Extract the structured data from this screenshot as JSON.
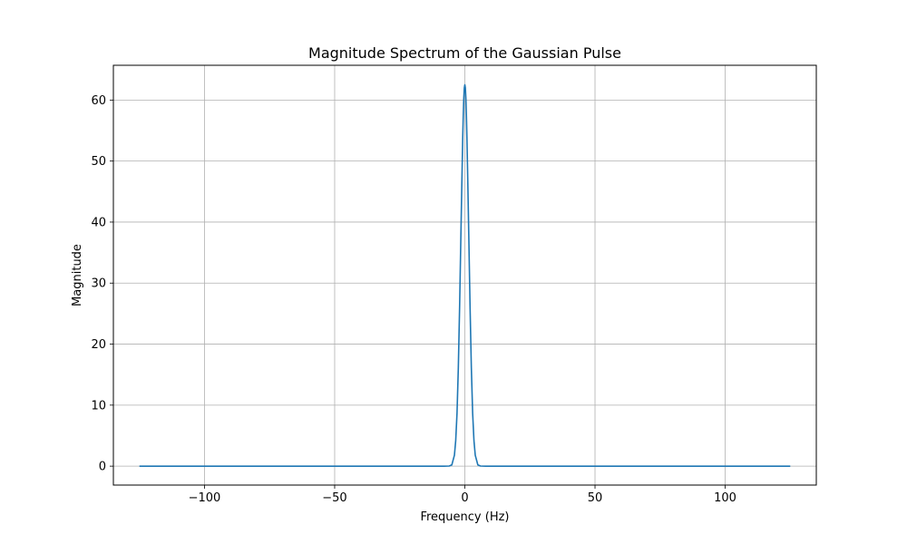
{
  "chart_data": {
    "type": "line",
    "title": "Magnitude Spectrum of the Gaussian Pulse",
    "xlabel": "Frequency (Hz)",
    "ylabel": "Magnitude",
    "xlim": [
      -135,
      135
    ],
    "ylim": [
      -3.1,
      65.7
    ],
    "xticks": [
      -100,
      -50,
      0,
      50,
      100
    ],
    "xtick_labels": [
      "−100",
      "−50",
      "0",
      "50",
      "100"
    ],
    "yticks": [
      0,
      10,
      20,
      30,
      40,
      50,
      60
    ],
    "ytick_labels": [
      "0",
      "10",
      "20",
      "30",
      "40",
      "50",
      "60"
    ],
    "grid": true,
    "series": [
      {
        "color": "#1f77b4",
        "x": [
          -125,
          -60,
          -20,
          -8,
          -6,
          -5,
          -4,
          -3.5,
          -3,
          -2.5,
          -2,
          -1.5,
          -1.2,
          -1,
          -0.8,
          -0.6,
          -0.4,
          -0.2,
          0,
          0.2,
          0.4,
          0.6,
          0.8,
          1,
          1.2,
          1.5,
          2,
          2.5,
          3,
          3.5,
          4,
          5,
          6,
          8,
          20,
          60,
          125
        ],
        "y": [
          0,
          0,
          0,
          0,
          0.02,
          0.2,
          1.8,
          4.2,
          8.7,
          16.1,
          26.3,
          38.1,
          45.2,
          49.7,
          53.9,
          57.5,
          60.3,
          62.0,
          62.5,
          62.0,
          60.3,
          57.5,
          53.9,
          49.7,
          45.2,
          38.1,
          26.3,
          16.1,
          8.7,
          4.2,
          1.8,
          0.2,
          0.02,
          0,
          0,
          0,
          0
        ]
      }
    ]
  }
}
